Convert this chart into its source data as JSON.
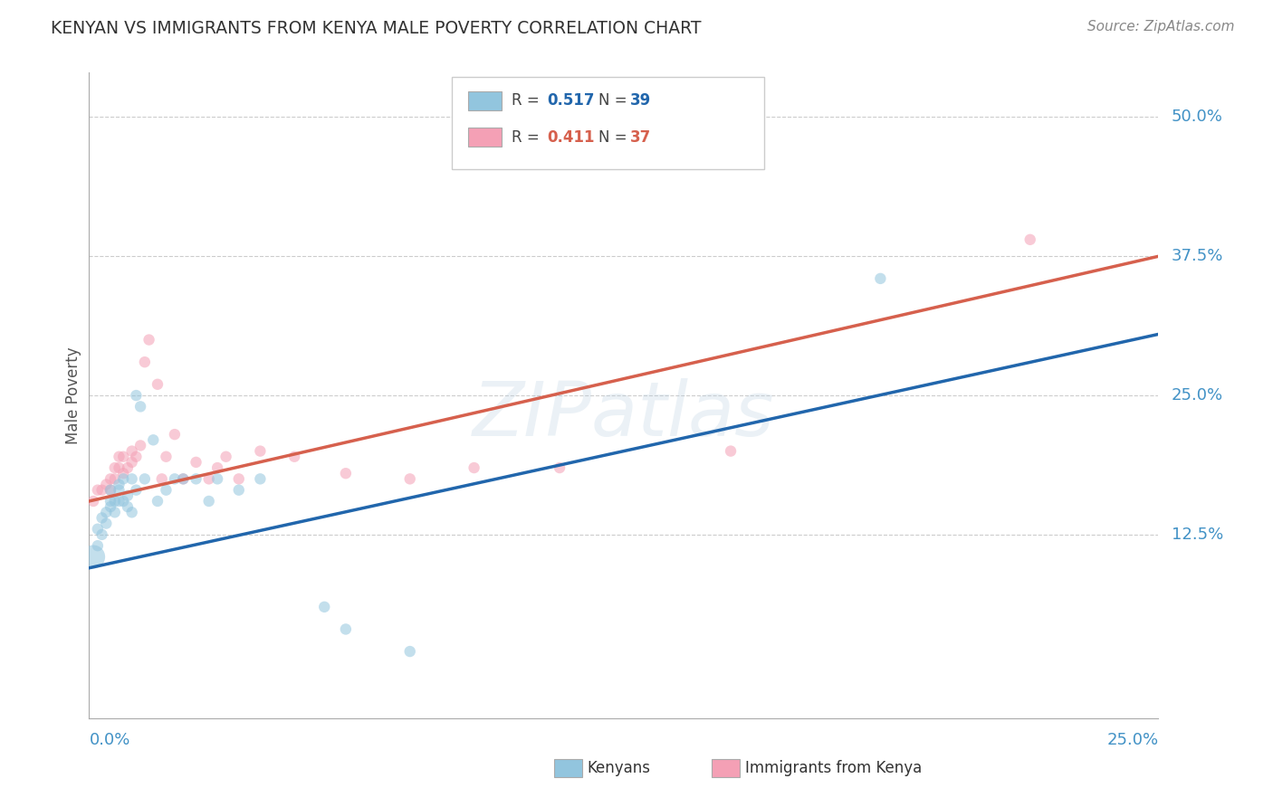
{
  "title": "KENYAN VS IMMIGRANTS FROM KENYA MALE POVERTY CORRELATION CHART",
  "source": "Source: ZipAtlas.com",
  "ylabel": "Male Poverty",
  "watermark": "ZIPatlas",
  "xlim": [
    0.0,
    0.25
  ],
  "ylim": [
    -0.04,
    0.54
  ],
  "yticks": [
    0.125,
    0.25,
    0.375,
    0.5
  ],
  "ytick_labels": [
    "12.5%",
    "25.0%",
    "37.5%",
    "50.0%"
  ],
  "blue_color": "#92c5de",
  "pink_color": "#f4a0b5",
  "blue_line_color": "#2166ac",
  "pink_line_color": "#d6604d",
  "title_color": "#333333",
  "axis_label_color": "#4292c6",
  "scatter_alpha": 0.55,
  "kenyans_x": [
    0.001,
    0.002,
    0.002,
    0.003,
    0.003,
    0.004,
    0.004,
    0.005,
    0.005,
    0.005,
    0.006,
    0.006,
    0.007,
    0.007,
    0.007,
    0.008,
    0.008,
    0.009,
    0.009,
    0.01,
    0.01,
    0.011,
    0.011,
    0.012,
    0.013,
    0.015,
    0.016,
    0.018,
    0.02,
    0.022,
    0.025,
    0.028,
    0.03,
    0.035,
    0.04,
    0.055,
    0.06,
    0.075,
    0.185
  ],
  "kenyans_y": [
    0.105,
    0.13,
    0.115,
    0.14,
    0.125,
    0.145,
    0.135,
    0.165,
    0.155,
    0.15,
    0.155,
    0.145,
    0.165,
    0.155,
    0.17,
    0.155,
    0.175,
    0.16,
    0.15,
    0.175,
    0.145,
    0.165,
    0.25,
    0.24,
    0.175,
    0.21,
    0.155,
    0.165,
    0.175,
    0.175,
    0.175,
    0.155,
    0.175,
    0.165,
    0.175,
    0.06,
    0.04,
    0.02,
    0.355
  ],
  "kenyans_sizes": [
    350,
    80,
    80,
    80,
    80,
    80,
    80,
    80,
    80,
    80,
    80,
    80,
    80,
    80,
    80,
    80,
    80,
    80,
    80,
    80,
    80,
    80,
    80,
    80,
    80,
    80,
    80,
    80,
    80,
    80,
    80,
    80,
    80,
    80,
    80,
    80,
    80,
    80,
    80
  ],
  "immigrants_x": [
    0.001,
    0.002,
    0.003,
    0.004,
    0.005,
    0.005,
    0.006,
    0.006,
    0.007,
    0.007,
    0.008,
    0.008,
    0.009,
    0.01,
    0.01,
    0.011,
    0.012,
    0.013,
    0.014,
    0.016,
    0.017,
    0.018,
    0.02,
    0.022,
    0.025,
    0.028,
    0.03,
    0.032,
    0.035,
    0.04,
    0.048,
    0.06,
    0.075,
    0.09,
    0.11,
    0.15,
    0.22
  ],
  "immigrants_y": [
    0.155,
    0.165,
    0.165,
    0.17,
    0.175,
    0.165,
    0.175,
    0.185,
    0.185,
    0.195,
    0.195,
    0.18,
    0.185,
    0.2,
    0.19,
    0.195,
    0.205,
    0.28,
    0.3,
    0.26,
    0.175,
    0.195,
    0.215,
    0.175,
    0.19,
    0.175,
    0.185,
    0.195,
    0.175,
    0.2,
    0.195,
    0.18,
    0.175,
    0.185,
    0.185,
    0.2,
    0.39
  ],
  "immigrants_sizes": [
    80,
    80,
    80,
    80,
    80,
    80,
    80,
    80,
    80,
    80,
    80,
    80,
    80,
    80,
    80,
    80,
    80,
    80,
    80,
    80,
    80,
    80,
    80,
    80,
    80,
    80,
    80,
    80,
    80,
    80,
    80,
    80,
    80,
    80,
    80,
    80,
    80
  ],
  "blue_line_x0": 0.0,
  "blue_line_y0": 0.095,
  "blue_line_x1": 0.25,
  "blue_line_y1": 0.305,
  "pink_line_x0": 0.0,
  "pink_line_y0": 0.155,
  "pink_line_x1": 0.25,
  "pink_line_y1": 0.375
}
